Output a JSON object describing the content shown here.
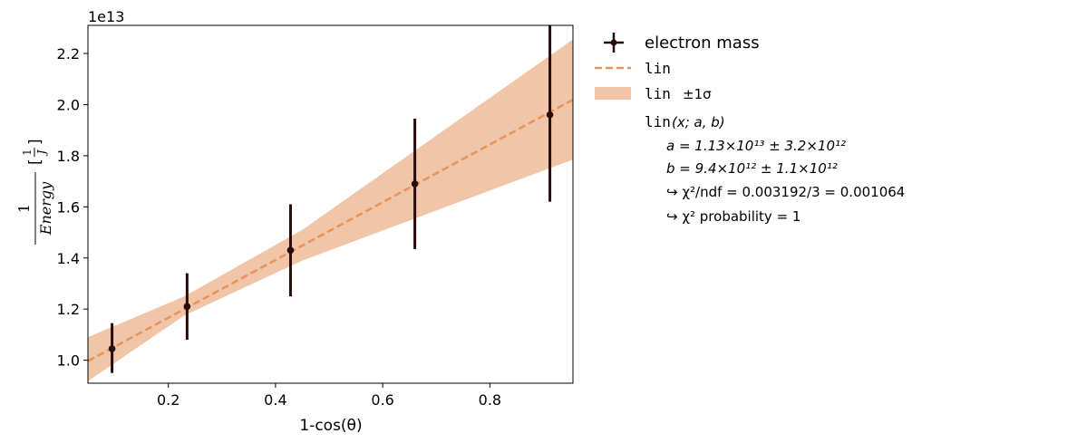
{
  "chart_data": {
    "type": "scatter",
    "scale_factor_label": "1e13",
    "xlabel": "1-cos(θ)",
    "ylabel": {
      "numerator": "1",
      "denominator": "Energy",
      "unit_numerator": "1",
      "unit_denominator": "J"
    },
    "xlim": [
      0.05,
      0.955
    ],
    "ylim": [
      9100000000000.0,
      23100000000000.0
    ],
    "x_ticks": [
      0.2,
      0.4,
      0.6,
      0.8
    ],
    "x_tick_labels": [
      "0.2",
      "0.4",
      "0.6",
      "0.8"
    ],
    "y_ticks": [
      10000000000000.0,
      12000000000000.0,
      14000000000000.0,
      16000000000000.0,
      18000000000000.0,
      20000000000000.0,
      22000000000000.0
    ],
    "y_tick_labels": [
      "1.0",
      "1.2",
      "1.4",
      "1.6",
      "1.8",
      "2.0",
      "2.2"
    ],
    "points": [
      {
        "x": 0.095,
        "y": 10450000000000.0,
        "yerr_low": 9500000000000.0,
        "yerr_high": 11450000000000.0
      },
      {
        "x": 0.235,
        "y": 12100000000000.0,
        "yerr_low": 10800000000000.0,
        "yerr_high": 13400000000000.0
      },
      {
        "x": 0.428,
        "y": 14300000000000.0,
        "yerr_low": 12500000000000.0,
        "yerr_high": 16100000000000.0
      },
      {
        "x": 0.66,
        "y": 16900000000000.0,
        "yerr_low": 14350000000000.0,
        "yerr_high": 19450000000000.0
      },
      {
        "x": 0.912,
        "y": 19600000000000.0,
        "yerr_low": 16200000000000.0,
        "yerr_high": 23100000000000.0
      }
    ],
    "fit": {
      "a": 11300000000000.0,
      "b": 9400000000000.0,
      "a_err": 3200000000000.0,
      "b_err": 1100000000000.0,
      "band_lower": [
        [
          0.05,
          9180000000000.0
        ],
        [
          0.23,
          11750000000000.0
        ],
        [
          0.45,
          13900000000000.0
        ],
        [
          0.955,
          17850000000000.0
        ]
      ],
      "band_upper": [
        [
          0.05,
          10900000000000.0
        ],
        [
          0.23,
          12500000000000.0
        ],
        [
          0.45,
          15100000000000.0
        ],
        [
          0.955,
          22550000000000.0
        ]
      ]
    },
    "colors": {
      "points": "#2a0a0a",
      "fit_line": "#e8935a",
      "band": "#f0c5a8"
    },
    "legend": {
      "placement": "outside-right",
      "data_label": "electron mass",
      "fit_label": "lin",
      "band_label": "lin",
      "band_suffix": "±1σ",
      "model_label": "lin",
      "model_args": "(x; a, b)",
      "param_a": "a =  1.13×10¹³ ± 3.2×10¹²",
      "param_b": "b =  9.4×10¹² ± 1.1×10¹²",
      "chi2_ndf": "↪ χ²/ndf = 0.003192/3 = 0.001064",
      "chi2_prob": "↪ χ² probability = 1"
    }
  }
}
